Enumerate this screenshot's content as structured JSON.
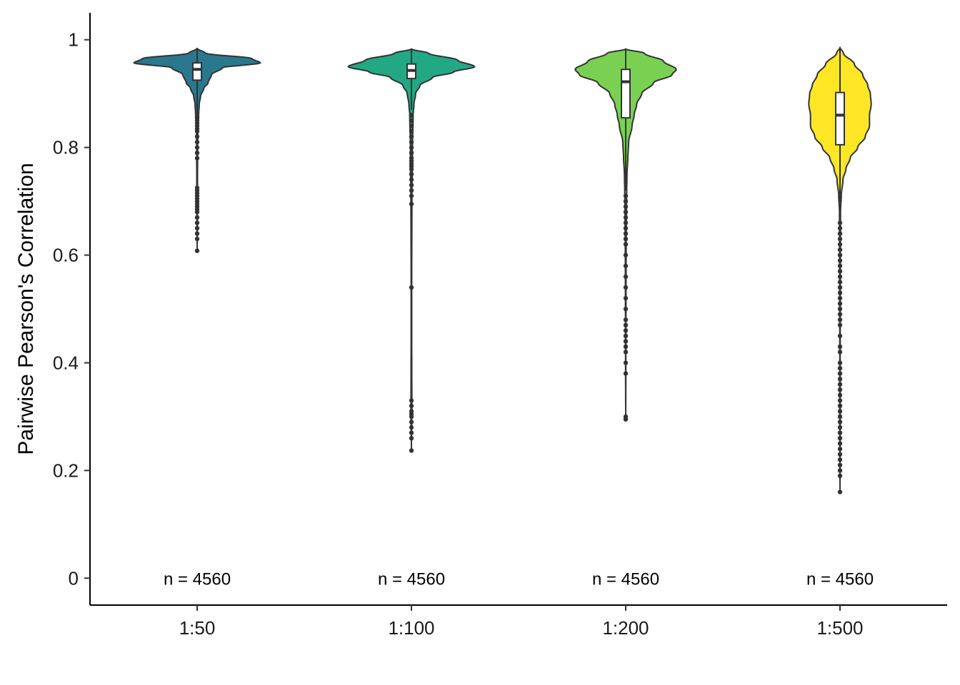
{
  "chart_data": {
    "type": "violin",
    "xlabel": "",
    "ylabel": "Pairwise Pearson's Correlation",
    "ylim": [
      -0.05,
      1.05
    ],
    "yticks": [
      0,
      0.2,
      0.4,
      0.6,
      0.8,
      1
    ],
    "ytick_labels": [
      "0",
      "0.2",
      "0.4",
      "0.6",
      "0.8",
      "1"
    ],
    "grid": false,
    "legend": "none",
    "groups": [
      {
        "label": "1:50",
        "color": "#2a788e",
        "n_label": "n = 4560",
        "box": {
          "q1": 0.925,
          "median": 0.945,
          "q3": 0.957,
          "whisker_low": 0.86,
          "whisker_high": 0.984
        },
        "density": [
          [
            0.984,
            0.0
          ],
          [
            0.975,
            0.1
          ],
          [
            0.965,
            0.65
          ],
          [
            0.957,
            0.75
          ],
          [
            0.948,
            0.3
          ],
          [
            0.935,
            0.17
          ],
          [
            0.92,
            0.13
          ],
          [
            0.91,
            0.08
          ],
          [
            0.895,
            0.04
          ],
          [
            0.88,
            0.025
          ],
          [
            0.86,
            0.018
          ],
          [
            0.84,
            0.01
          ],
          [
            0.8,
            0.005
          ],
          [
            0.7,
            0.004
          ],
          [
            0.61,
            0.0
          ]
        ],
        "outliers": [
          0.855,
          0.85,
          0.845,
          0.84,
          0.835,
          0.83,
          0.82,
          0.81,
          0.8,
          0.79,
          0.78,
          0.725,
          0.72,
          0.715,
          0.71,
          0.705,
          0.7,
          0.695,
          0.69,
          0.685,
          0.68,
          0.67,
          0.66,
          0.65,
          0.64,
          0.63,
          0.608
        ]
      },
      {
        "label": "1:100",
        "color": "#22a884",
        "n_label": "n = 4560",
        "box": {
          "q1": 0.928,
          "median": 0.943,
          "q3": 0.955,
          "whisker_low": 0.87,
          "whisker_high": 0.983
        },
        "density": [
          [
            0.983,
            0.0
          ],
          [
            0.975,
            0.2
          ],
          [
            0.962,
            0.55
          ],
          [
            0.95,
            0.75
          ],
          [
            0.94,
            0.5
          ],
          [
            0.93,
            0.25
          ],
          [
            0.915,
            0.1
          ],
          [
            0.9,
            0.05
          ],
          [
            0.88,
            0.03
          ],
          [
            0.86,
            0.02
          ],
          [
            0.8,
            0.012
          ],
          [
            0.77,
            0.013
          ],
          [
            0.72,
            0.006
          ],
          [
            0.5,
            0.003
          ],
          [
            0.31,
            0.005
          ],
          [
            0.24,
            0.0
          ]
        ],
        "outliers": [
          0.86,
          0.85,
          0.84,
          0.83,
          0.82,
          0.81,
          0.8,
          0.79,
          0.78,
          0.775,
          0.77,
          0.765,
          0.76,
          0.75,
          0.74,
          0.73,
          0.72,
          0.71,
          0.695,
          0.54,
          0.33,
          0.32,
          0.31,
          0.305,
          0.3,
          0.29,
          0.28,
          0.27,
          0.26,
          0.237
        ]
      },
      {
        "label": "1:200",
        "color": "#7ad151",
        "n_label": "n = 4560",
        "box": {
          "q1": 0.855,
          "median": 0.922,
          "q3": 0.945,
          "whisker_low": 0.72,
          "whisker_high": 0.983
        },
        "density": [
          [
            0.983,
            0.0
          ],
          [
            0.975,
            0.22
          ],
          [
            0.96,
            0.45
          ],
          [
            0.945,
            0.6
          ],
          [
            0.935,
            0.55
          ],
          [
            0.92,
            0.33
          ],
          [
            0.9,
            0.19
          ],
          [
            0.88,
            0.13
          ],
          [
            0.86,
            0.1
          ],
          [
            0.84,
            0.075
          ],
          [
            0.81,
            0.035
          ],
          [
            0.78,
            0.025
          ],
          [
            0.75,
            0.015
          ],
          [
            0.72,
            0.012
          ],
          [
            0.68,
            0.008
          ],
          [
            0.62,
            0.005
          ],
          [
            0.5,
            0.003
          ],
          [
            0.4,
            0.002
          ],
          [
            0.295,
            0.0
          ]
        ],
        "outliers": [
          0.71,
          0.7,
          0.69,
          0.68,
          0.67,
          0.66,
          0.65,
          0.64,
          0.63,
          0.62,
          0.6,
          0.58,
          0.56,
          0.54,
          0.52,
          0.5,
          0.48,
          0.47,
          0.46,
          0.45,
          0.44,
          0.43,
          0.42,
          0.4,
          0.38,
          0.3,
          0.295
        ]
      },
      {
        "label": "1:500",
        "color": "#fde725",
        "n_label": "n = 4560",
        "box": {
          "q1": 0.805,
          "median": 0.86,
          "q3": 0.902,
          "whisker_low": 0.665,
          "whisker_high": 0.986
        },
        "density": [
          [
            0.986,
            0.0
          ],
          [
            0.975,
            0.04
          ],
          [
            0.955,
            0.17
          ],
          [
            0.935,
            0.27
          ],
          [
            0.915,
            0.33
          ],
          [
            0.9,
            0.36
          ],
          [
            0.88,
            0.37
          ],
          [
            0.86,
            0.35
          ],
          [
            0.84,
            0.35
          ],
          [
            0.82,
            0.3
          ],
          [
            0.8,
            0.21
          ],
          [
            0.78,
            0.12
          ],
          [
            0.76,
            0.07
          ],
          [
            0.74,
            0.035
          ],
          [
            0.71,
            0.015
          ],
          [
            0.68,
            0.006
          ],
          [
            0.6,
            0.004
          ],
          [
            0.5,
            0.003
          ],
          [
            0.4,
            0.002
          ],
          [
            0.3,
            0.003
          ],
          [
            0.2,
            0.001
          ],
          [
            0.16,
            0.0
          ]
        ],
        "outliers": [
          0.66,
          0.65,
          0.64,
          0.63,
          0.62,
          0.61,
          0.6,
          0.59,
          0.58,
          0.57,
          0.56,
          0.55,
          0.54,
          0.53,
          0.52,
          0.51,
          0.5,
          0.49,
          0.48,
          0.47,
          0.45,
          0.43,
          0.42,
          0.4,
          0.39,
          0.38,
          0.37,
          0.36,
          0.35,
          0.34,
          0.33,
          0.32,
          0.31,
          0.3,
          0.29,
          0.28,
          0.27,
          0.26,
          0.25,
          0.24,
          0.23,
          0.22,
          0.21,
          0.2,
          0.19,
          0.16
        ]
      }
    ]
  }
}
